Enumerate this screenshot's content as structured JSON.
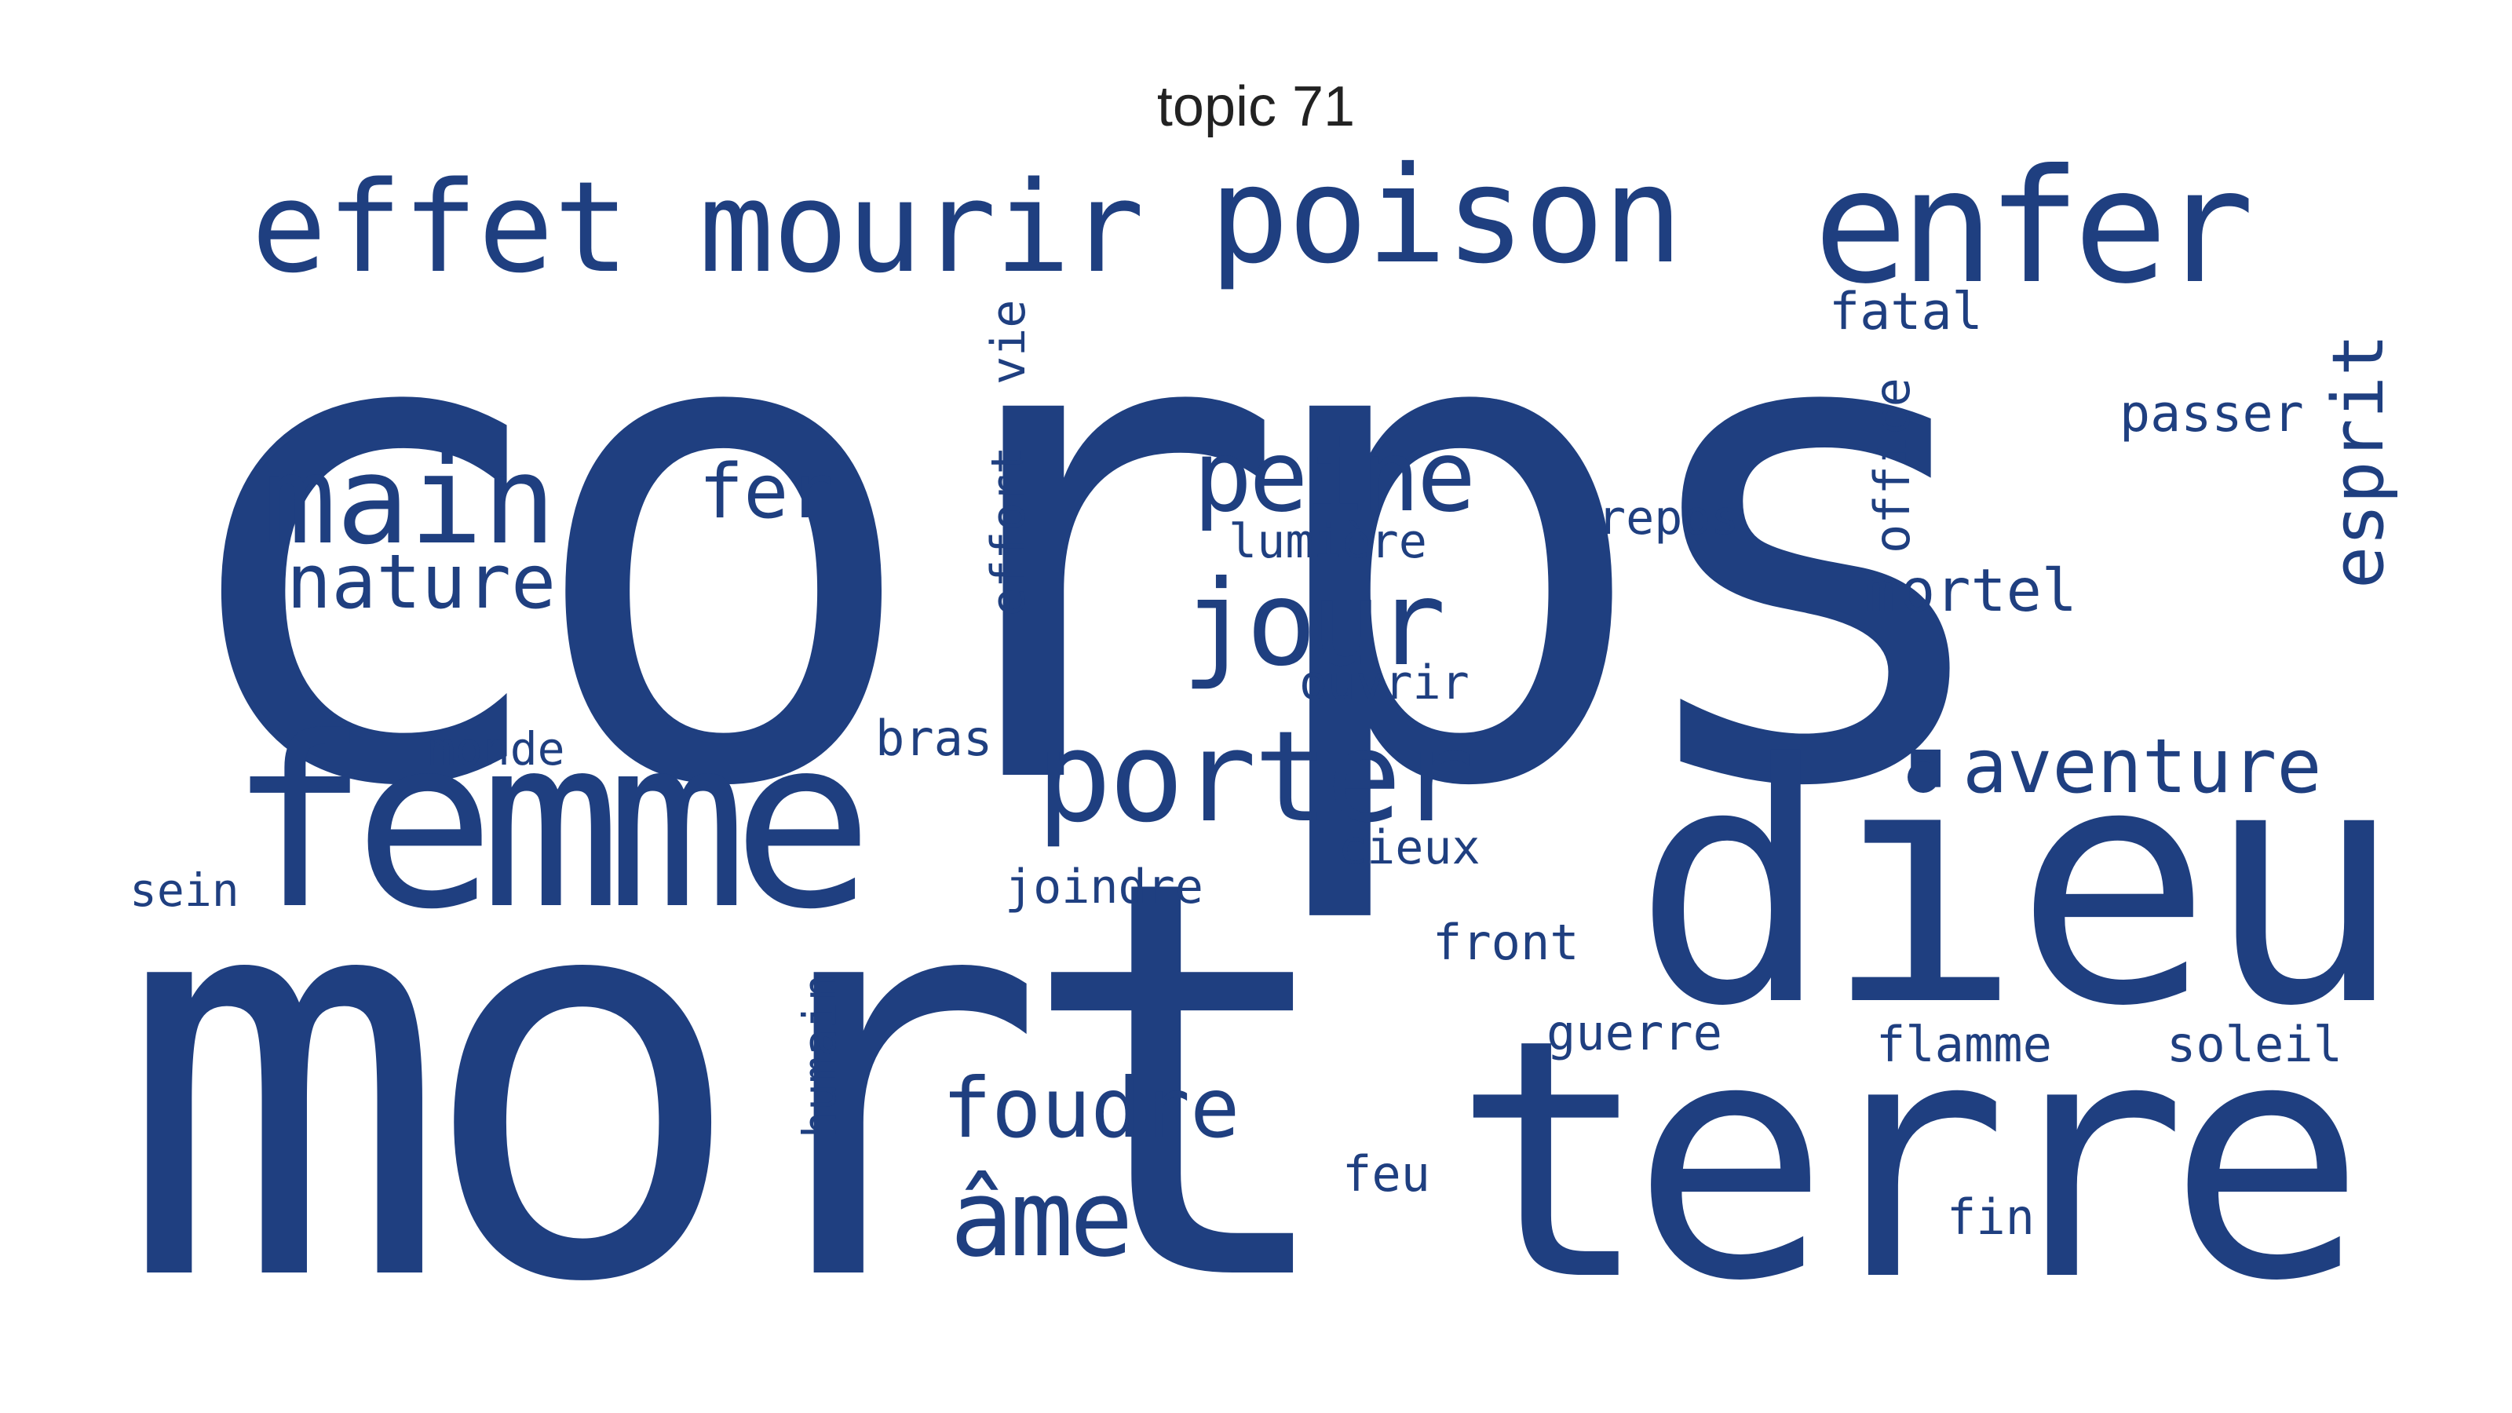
{
  "title": "topic 71",
  "color": "#1f3f80",
  "words": [
    "corps",
    "mort",
    "dieu",
    "terre",
    "femme",
    "enfer",
    "poison",
    "mourir",
    "effet",
    "porter",
    "jour",
    "main",
    "peine",
    "âme",
    "foudre",
    "aventure",
    "nature",
    "esprit",
    "fer",
    "mortel",
    "repos",
    "lumière",
    "ouvrir",
    "cieux",
    "joindre",
    "front",
    "guerre",
    "flamme",
    "soleil",
    "fatal",
    "passer",
    "office",
    "vie",
    "effort",
    "monde",
    "bras",
    "sein",
    "humain",
    "feu",
    "fin"
  ]
}
